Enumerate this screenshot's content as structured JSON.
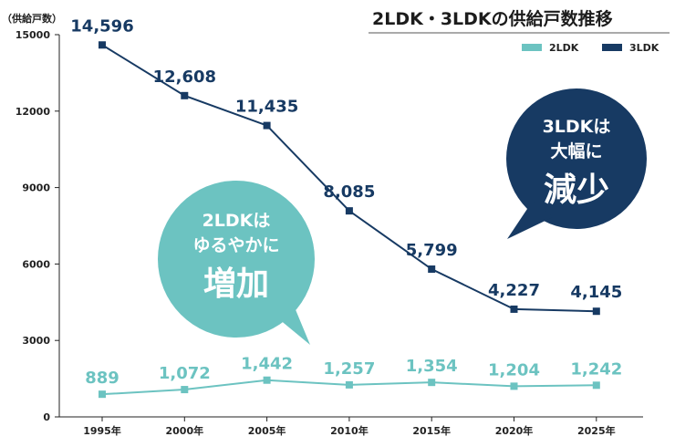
{
  "chart_data": {
    "type": "line",
    "title": "2LDK・3LDKの供給戸数推移",
    "ylabel": "（供給戸数）",
    "xlabel": "",
    "categories": [
      "1995年",
      "2000年",
      "2005年",
      "2010年",
      "2015年",
      "2020年",
      "2025年"
    ],
    "ylim": [
      0,
      15000
    ],
    "yticks": [
      "0",
      "3000",
      "6000",
      "9000",
      "12000",
      "15000"
    ],
    "grid": false,
    "legend_position": "top-right",
    "series": [
      {
        "name": "2LDK",
        "color": "#6cc3c1",
        "values": [
          889,
          1072,
          1442,
          1257,
          1354,
          1204,
          1242
        ],
        "labels": [
          "889",
          "1,072",
          "1,442",
          "1,257",
          "1,354",
          "1,204",
          "1,242"
        ]
      },
      {
        "name": "3LDK",
        "color": "#173a63",
        "values": [
          14596,
          12608,
          11435,
          8085,
          5799,
          4227,
          4145
        ],
        "labels": [
          "14,596",
          "12,608",
          "11,435",
          "8,085",
          "5,799",
          "4,227",
          "4,145"
        ]
      }
    ],
    "annotations": {
      "bubble_2ldk": {
        "line1": "2LDKは",
        "line2": "ゆるやかに",
        "emphasis": "増加",
        "color": "#6cc3c1"
      },
      "bubble_3ldk": {
        "line1": "3LDKは",
        "line2": "大幅に",
        "emphasis": "減少",
        "color": "#173a63"
      }
    }
  }
}
